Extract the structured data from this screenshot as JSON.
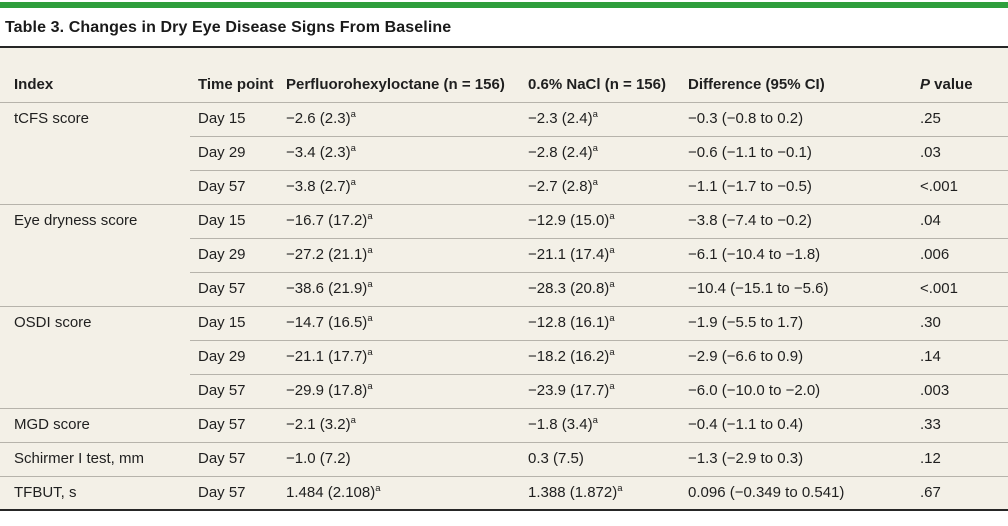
{
  "colors": {
    "accent_green": "#2f9e3c",
    "table_bg": "#f3f0e7",
    "rule_dark": "#262626",
    "rule_light": "#b6b3ab",
    "text_color": "#1f1f1f"
  },
  "title": "Table 3. Changes in Dry Eye Disease Signs From Baseline",
  "table": {
    "columns": [
      {
        "id": "index",
        "label": "Index"
      },
      {
        "id": "time",
        "label": "Time point"
      },
      {
        "id": "pfho",
        "label": "Perfluorohexyloctane (n = 156)"
      },
      {
        "id": "nacl",
        "label": "0.6% NaCl (n = 156)"
      },
      {
        "id": "diff",
        "label": "Difference (95% CI)"
      },
      {
        "id": "p",
        "label_italic": "P",
        "label_rest": " value"
      }
    ],
    "rows": [
      {
        "index": "tCFS score",
        "time": "Day 15",
        "pfho": "−2.6 (2.3)",
        "pfho_sup": "a",
        "nacl": "−2.3 (2.4)",
        "nacl_sup": "a",
        "diff": "−0.3 (−0.8 to 0.2)",
        "p": ".25",
        "group_start": true
      },
      {
        "index": "",
        "time": "Day 29",
        "pfho": "−3.4 (2.3)",
        "pfho_sup": "a",
        "nacl": "−2.8 (2.4)",
        "nacl_sup": "a",
        "diff": "−0.6 (−1.1 to −0.1)",
        "p": ".03",
        "group_start": false
      },
      {
        "index": "",
        "time": "Day 57",
        "pfho": "−3.8 (2.7)",
        "pfho_sup": "a",
        "nacl": "−2.7 (2.8)",
        "nacl_sup": "a",
        "diff": "−1.1 (−1.7 to −0.5)",
        "p": "<.001",
        "group_start": false
      },
      {
        "index": "Eye dryness score",
        "time": "Day 15",
        "pfho": "−16.7 (17.2)",
        "pfho_sup": "a",
        "nacl": "−12.9 (15.0)",
        "nacl_sup": "a",
        "diff": "−3.8 (−7.4 to −0.2)",
        "p": ".04",
        "group_start": true
      },
      {
        "index": "",
        "time": "Day 29",
        "pfho": "−27.2 (21.1)",
        "pfho_sup": "a",
        "nacl": "−21.1 (17.4)",
        "nacl_sup": "a",
        "diff": "−6.1 (−10.4 to −1.8)",
        "p": ".006",
        "group_start": false
      },
      {
        "index": "",
        "time": "Day 57",
        "pfho": "−38.6 (21.9)",
        "pfho_sup": "a",
        "nacl": "−28.3 (20.8)",
        "nacl_sup": "a",
        "diff": "−10.4 (−15.1 to −5.6)",
        "p": "<.001",
        "group_start": false
      },
      {
        "index": "OSDI score",
        "time": "Day 15",
        "pfho": "−14.7 (16.5)",
        "pfho_sup": "a",
        "nacl": "−12.8 (16.1)",
        "nacl_sup": "a",
        "diff": "−1.9 (−5.5 to 1.7)",
        "p": ".30",
        "group_start": true
      },
      {
        "index": "",
        "time": "Day 29",
        "pfho": "−21.1 (17.7)",
        "pfho_sup": "a",
        "nacl": "−18.2 (16.2)",
        "nacl_sup": "a",
        "diff": "−2.9 (−6.6 to 0.9)",
        "p": ".14",
        "group_start": false
      },
      {
        "index": "",
        "time": "Day 57",
        "pfho": "−29.9 (17.8)",
        "pfho_sup": "a",
        "nacl": "−23.9 (17.7)",
        "nacl_sup": "a",
        "diff": "−6.0 (−10.0 to −2.0)",
        "p": ".003",
        "group_start": false
      },
      {
        "index": "MGD score",
        "time": "Day 57",
        "pfho": "−2.1 (3.2)",
        "pfho_sup": "a",
        "nacl": "−1.8 (3.4)",
        "nacl_sup": "a",
        "diff": "−0.4 (−1.1 to 0.4)",
        "p": ".33",
        "group_start": true
      },
      {
        "index": "Schirmer I test, mm",
        "time": "Day 57",
        "pfho": "−1.0 (7.2)",
        "pfho_sup": "",
        "nacl": "0.3 (7.5)",
        "nacl_sup": "",
        "diff": "−1.3 (−2.9 to 0.3)",
        "p": ".12",
        "group_start": true
      },
      {
        "index": "TFBUT, s",
        "time": "Day 57",
        "pfho": "1.484 (2.108)",
        "pfho_sup": "a",
        "nacl": "1.388 (1.872)",
        "nacl_sup": "a",
        "diff": "0.096 (−0.349 to 0.541)",
        "p": ".67",
        "group_start": true
      }
    ]
  }
}
